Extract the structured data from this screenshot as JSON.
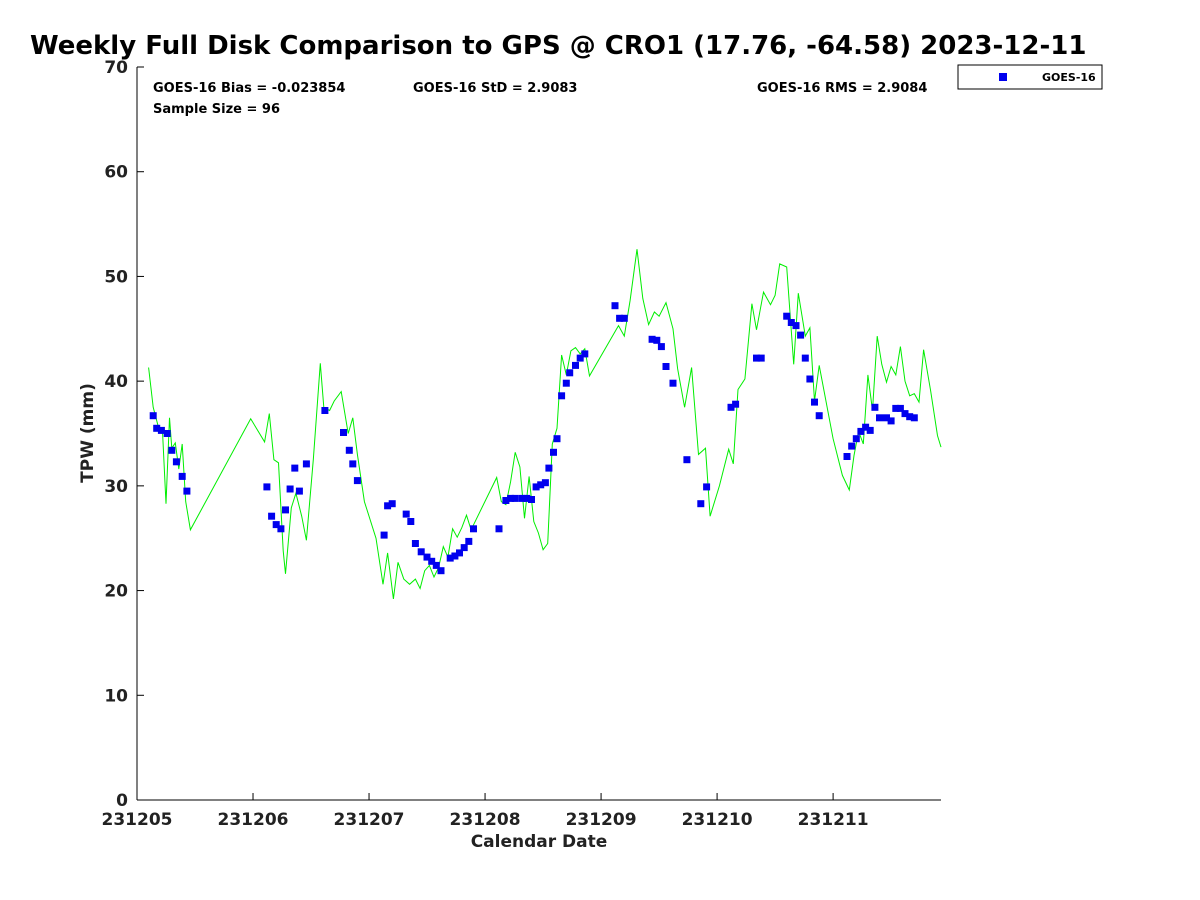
{
  "chart_data": {
    "type": "scatter",
    "title": "Weekly Full Disk Comparison to GPS @ CRO1 (17.76, -64.58) 2023-12-11",
    "xlabel": "Calendar Date",
    "ylabel": "TPW (mm)",
    "xlim": [
      231205,
      231211.93
    ],
    "ylim": [
      0,
      70
    ],
    "x_ticks": [
      "231205",
      "231206",
      "231207",
      "231208",
      "231209",
      "231210",
      "231211"
    ],
    "y_ticks": [
      "0",
      "10",
      "20",
      "30",
      "40",
      "50",
      "60",
      "70"
    ],
    "grid": false,
    "legend_position": "top-right outside",
    "stats": {
      "bias": "GOES-16 Bias = -0.023854",
      "std": "GOES-16 StD = 2.9083",
      "rms": "GOES-16 RMS = 2.9084",
      "sample": "Sample Size = 96"
    },
    "colors": {
      "goes": "#0000ee",
      "gps": "#00ee00"
    },
    "series": [
      {
        "name": "GOES-16",
        "marker": "square",
        "x": [
          231205.14,
          231205.17,
          231205.21,
          231205.26,
          231205.3,
          231205.34,
          231205.39,
          231205.43,
          231206.12,
          231206.16,
          231206.2,
          231206.24,
          231206.28,
          231206.32,
          231206.36,
          231206.4,
          231206.46,
          231206.62,
          231206.78,
          231206.83,
          231206.86,
          231206.9,
          231207.13,
          231207.16,
          231207.2,
          231207.32,
          231207.36,
          231207.4,
          231207.45,
          231207.5,
          231207.54,
          231207.58,
          231207.62,
          231207.7,
          231207.74,
          231207.78,
          231207.82,
          231207.86,
          231207.9,
          231208.12,
          231208.18,
          231208.22,
          231208.26,
          231208.32,
          231208.36,
          231208.4,
          231208.44,
          231208.48,
          231208.52,
          231208.55,
          231208.59,
          231208.62,
          231208.66,
          231208.7,
          231208.73,
          231208.78,
          231208.82,
          231208.86,
          231209.12,
          231209.16,
          231209.2,
          231209.44,
          231209.48,
          231209.52,
          231209.56,
          231209.62,
          231209.74,
          231209.86,
          231209.91,
          231210.12,
          231210.16,
          231210.34,
          231210.38,
          231210.6,
          231210.64,
          231210.68,
          231210.72,
          231210.76,
          231210.8,
          231210.84,
          231210.88,
          231211.12,
          231211.16,
          231211.2,
          231211.24,
          231211.28,
          231211.32,
          231211.36,
          231211.4,
          231211.46,
          231211.5,
          231211.54,
          231211.58,
          231211.62,
          231211.66,
          231211.7
        ],
        "y": [
          36.7,
          35.5,
          35.3,
          35.0,
          33.4,
          32.3,
          30.9,
          29.5,
          29.9,
          27.1,
          26.3,
          25.9,
          27.7,
          29.7,
          31.7,
          29.5,
          32.1,
          37.2,
          35.1,
          33.4,
          32.1,
          30.5,
          25.3,
          28.1,
          28.3,
          27.3,
          26.6,
          24.5,
          23.7,
          23.2,
          22.8,
          22.4,
          21.9,
          23.1,
          23.3,
          23.6,
          24.1,
          24.7,
          25.9,
          25.9,
          28.6,
          28.8,
          28.8,
          28.8,
          28.8,
          28.7,
          29.9,
          30.1,
          30.3,
          31.7,
          33.2,
          34.5,
          38.6,
          39.8,
          40.8,
          41.5,
          42.2,
          42.6,
          47.2,
          46.0,
          46.0,
          44.0,
          43.9,
          43.3,
          41.4,
          39.8,
          32.5,
          28.3,
          29.9,
          37.5,
          37.8,
          42.2,
          42.2,
          46.2,
          45.6,
          45.3,
          44.4,
          42.2,
          40.2,
          38.0,
          36.7,
          32.8,
          33.8,
          34.5,
          35.2,
          35.6,
          35.3,
          37.5,
          36.5,
          36.5,
          36.2,
          37.4,
          37.4,
          36.9,
          36.6,
          36.5
        ]
      },
      {
        "name": "",
        "style": "line",
        "x": [
          231205.1,
          231205.14,
          231205.18,
          231205.22,
          231205.25,
          231205.28,
          231205.3,
          231205.33,
          231205.36,
          231205.39,
          231205.42,
          231205.46,
          231205.98,
          231206.1,
          231206.14,
          231206.18,
          231206.22,
          231206.26,
          231206.28,
          231206.33,
          231206.37,
          231206.42,
          231206.46,
          231206.52,
          231206.58,
          231206.61,
          231206.66,
          231206.7,
          231206.76,
          231206.82,
          231206.86,
          231206.9,
          231206.96,
          231207.06,
          231207.12,
          231207.16,
          231207.21,
          231207.25,
          231207.3,
          231207.35,
          231207.4,
          231207.44,
          231207.48,
          231207.52,
          231207.56,
          231207.6,
          231207.64,
          231207.68,
          231207.72,
          231207.76,
          231207.8,
          231207.84,
          231207.88,
          231208.1,
          231208.14,
          231208.18,
          231208.22,
          231208.26,
          231208.3,
          231208.34,
          231208.38,
          231208.42,
          231208.46,
          231208.5,
          231208.54,
          231208.58,
          231208.62,
          231208.66,
          231208.7,
          231208.74,
          231208.78,
          231208.82,
          231208.86,
          231208.9,
          231209.15,
          231209.2,
          231209.25,
          231209.31,
          231209.36,
          231209.41,
          231209.46,
          231209.5,
          231209.56,
          231209.62,
          231209.66,
          231209.72,
          231209.78,
          231209.84,
          231209.9,
          231209.94,
          231210.02,
          231210.1,
          231210.14,
          231210.18,
          231210.24,
          231210.3,
          231210.34,
          231210.4,
          231210.46,
          231210.5,
          231210.54,
          231210.6,
          231210.66,
          231210.7,
          231210.76,
          231210.8,
          231210.84,
          231210.88,
          231211.0,
          231211.08,
          231211.14,
          231211.18,
          231211.22,
          231211.26,
          231211.3,
          231211.34,
          231211.38,
          231211.42,
          231211.46,
          231211.5,
          231211.54,
          231211.58,
          231211.62,
          231211.66,
          231211.7,
          231211.74,
          231211.78,
          231211.84,
          231211.9,
          231211.93
        ],
        "y": [
          41.3,
          37.5,
          35.8,
          35.2,
          28.3,
          36.5,
          33.6,
          34.1,
          31.6,
          34.0,
          28.5,
          25.8,
          36.4,
          34.2,
          36.9,
          32.5,
          32.2,
          23.8,
          21.6,
          27.9,
          29.3,
          27.1,
          24.8,
          32.5,
          41.7,
          37.5,
          37.2,
          38.1,
          39.0,
          35.0,
          36.5,
          33.0,
          28.5,
          25.0,
          20.6,
          23.6,
          19.2,
          22.7,
          21.1,
          20.6,
          21.1,
          20.2,
          21.9,
          22.4,
          21.3,
          22.2,
          24.2,
          23.2,
          25.9,
          25.1,
          26.0,
          27.2,
          25.8,
          30.8,
          28.5,
          28.2,
          30.4,
          33.2,
          31.8,
          26.9,
          30.9,
          26.6,
          25.5,
          23.9,
          24.5,
          34.0,
          35.5,
          42.5,
          40.6,
          42.9,
          43.2,
          42.6,
          43.1,
          40.5,
          45.3,
          44.3,
          47.7,
          52.6,
          47.9,
          45.4,
          46.6,
          46.2,
          47.5,
          45.0,
          41.2,
          37.5,
          41.3,
          33.0,
          33.6,
          27.1,
          30.0,
          33.5,
          32.1,
          39.2,
          40.2,
          47.4,
          44.9,
          48.5,
          47.3,
          48.2,
          51.2,
          50.9,
          41.6,
          48.4,
          44.3,
          45.1,
          38.1,
          41.5,
          34.5,
          31.0,
          29.6,
          32.9,
          35.2,
          34.0,
          40.6,
          37.2,
          44.3,
          41.6,
          39.9,
          41.4,
          40.6,
          43.3,
          40.0,
          38.6,
          38.8,
          38.0,
          43.0,
          39.1,
          34.8,
          33.7
        ]
      }
    ]
  }
}
